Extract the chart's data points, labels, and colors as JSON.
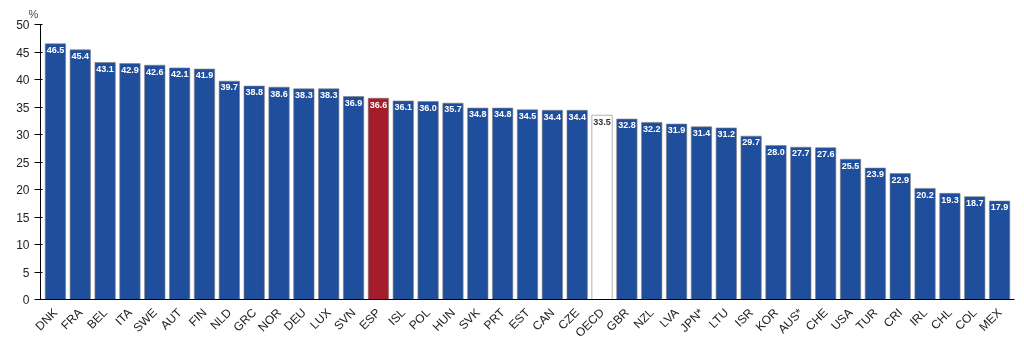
{
  "chart_data": {
    "type": "bar",
    "ylabel": "%",
    "categories": [
      "DNK",
      "FRA",
      "BEL",
      "ITA",
      "SWE",
      "AUT",
      "FIN",
      "NLD",
      "GRC",
      "NOR",
      "DEU",
      "LUX",
      "SVN",
      "ESP",
      "ISL",
      "POL",
      "HUN",
      "SVK",
      "PRT",
      "EST",
      "CAN",
      "CZE",
      "OECD",
      "GBR",
      "NZL",
      "LVA",
      "JPN*",
      "LTU",
      "ISR",
      "KOR",
      "AUS*",
      "CHE",
      "USA",
      "TUR",
      "CRI",
      "IRL",
      "CHL",
      "COL",
      "MEX"
    ],
    "values": [
      46.5,
      45.4,
      43.1,
      42.9,
      42.6,
      42.1,
      41.9,
      39.7,
      38.8,
      38.6,
      38.3,
      38.3,
      36.9,
      36.6,
      36.1,
      36.0,
      35.7,
      34.8,
      34.8,
      34.5,
      34.4,
      34.4,
      33.5,
      32.8,
      32.2,
      31.9,
      31.4,
      31.2,
      29.7,
      28.0,
      27.7,
      27.6,
      25.5,
      23.9,
      22.9,
      20.2,
      19.3,
      18.7,
      17.9
    ],
    "value_labels": [
      "46.5",
      "45.4",
      "43.1",
      "42.9",
      "42.6",
      "42.1",
      "41.9",
      "39.7",
      "38.8",
      "38.6",
      "38.3",
      "38.3",
      "36.9",
      "36.6",
      "36.1",
      "36.0",
      "35.7",
      "34.8",
      "34.8",
      "34.5",
      "34.4",
      "34.4",
      "33.5",
      "32.8",
      "32.2",
      "31.9",
      "31.4",
      "31.2",
      "29.7",
      "28.0",
      "27.7",
      "27.6",
      "25.5",
      "23.9",
      "22.9",
      "20.2",
      "19.3",
      "18.7",
      "17.9"
    ],
    "colors": [
      "#1f4e9c",
      "#1f4e9c",
      "#1f4e9c",
      "#1f4e9c",
      "#1f4e9c",
      "#1f4e9c",
      "#1f4e9c",
      "#1f4e9c",
      "#1f4e9c",
      "#1f4e9c",
      "#1f4e9c",
      "#1f4e9c",
      "#1f4e9c",
      "#a51c2c",
      "#1f4e9c",
      "#1f4e9c",
      "#1f4e9c",
      "#1f4e9c",
      "#1f4e9c",
      "#1f4e9c",
      "#1f4e9c",
      "#1f4e9c",
      "#ffffff",
      "#1f4e9c",
      "#1f4e9c",
      "#1f4e9c",
      "#1f4e9c",
      "#1f4e9c",
      "#1f4e9c",
      "#1f4e9c",
      "#1f4e9c",
      "#1f4e9c",
      "#1f4e9c",
      "#1f4e9c",
      "#1f4e9c",
      "#1f4e9c",
      "#1f4e9c",
      "#1f4e9c",
      "#1f4e9c"
    ],
    "ylim": [
      0,
      50
    ],
    "yticks": [
      0,
      5,
      10,
      15,
      20,
      25,
      30,
      35,
      40,
      45,
      50
    ],
    "grid": false
  }
}
